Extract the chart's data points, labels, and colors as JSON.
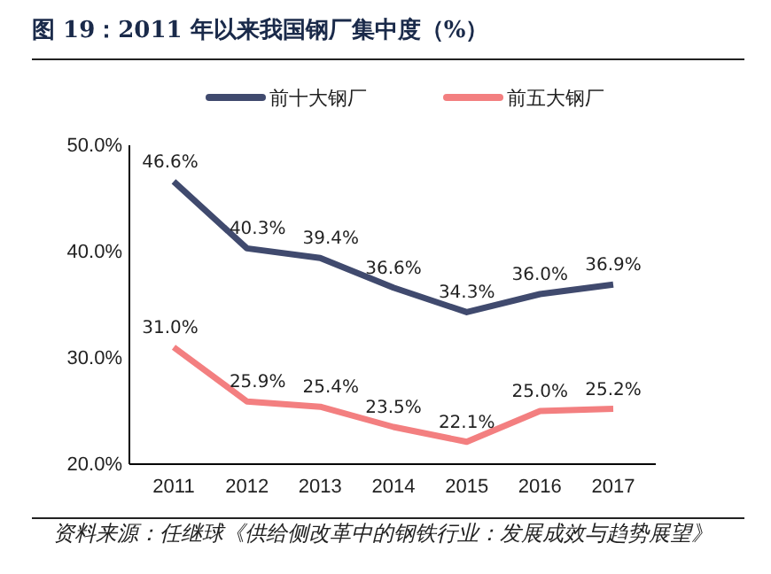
{
  "chart_data": {
    "type": "line",
    "title": "图 19：2011 年以来我国钢厂集中度（%）",
    "categories": [
      "2011",
      "2012",
      "2013",
      "2014",
      "2015",
      "2016",
      "2017"
    ],
    "series": [
      {
        "name": "前十大钢厂",
        "color": "#404a6e",
        "values": [
          46.6,
          40.3,
          39.4,
          36.6,
          34.3,
          36.0,
          36.9
        ],
        "value_labels": [
          "46.6%",
          "40.3%",
          "39.4%",
          "36.6%",
          "34.3%",
          "36.0%",
          "36.9%"
        ]
      },
      {
        "name": "前五大钢厂",
        "color": "#f37f80",
        "values": [
          31.0,
          25.9,
          25.4,
          23.5,
          22.1,
          25.0,
          25.2
        ],
        "value_labels": [
          "31.0%",
          "25.9%",
          "25.4%",
          "23.5%",
          "22.1%",
          "25.0%",
          "25.2%"
        ]
      }
    ],
    "ylim": [
      20,
      50
    ],
    "yticks": [
      {
        "value": 20,
        "label": "20.0%"
      },
      {
        "value": 30,
        "label": "30.0%"
      },
      {
        "value": 40,
        "label": "40.0%"
      },
      {
        "value": 50,
        "label": "50.0%"
      }
    ],
    "grid": false,
    "legend": "top",
    "marker": "none",
    "line_style": "solid",
    "annotations": [
      "资料来源：任继球《供给侧改革中的钢铁行业：发展成效与趋势展望》"
    ]
  }
}
